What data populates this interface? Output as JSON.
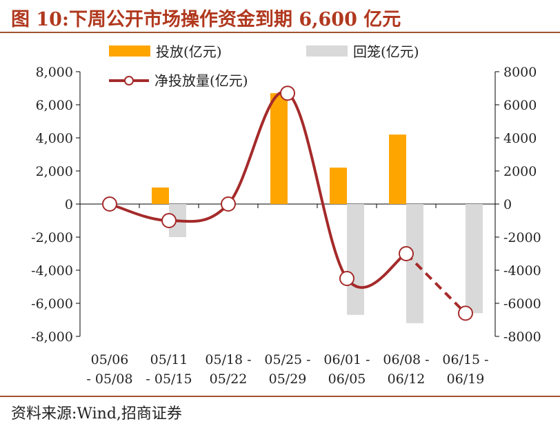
{
  "title": "图 10:下周公开市场操作资金到期 6,600 亿元",
  "source": "资料来源:Wind,招商证券",
  "colors": {
    "title": "#b0381e",
    "rule": "#a0522d",
    "injection": "#ffa500",
    "redemption": "#d9d9d9",
    "net": "#a52a2a"
  },
  "chart_data": {
    "type": "bar",
    "categories": [
      [
        "05/06",
        "- 05/08"
      ],
      [
        "05/11",
        "- 05/15"
      ],
      [
        "05/18 -",
        "05/22"
      ],
      [
        "05/25 -",
        "05/29"
      ],
      [
        "06/01 -",
        "06/05"
      ],
      [
        "06/08 -",
        "06/12"
      ],
      [
        "06/15 -",
        "06/19"
      ]
    ],
    "series": [
      {
        "name": "投放(亿元)",
        "type": "bar",
        "values": [
          0,
          1000,
          0,
          6700,
          2200,
          4200,
          0
        ]
      },
      {
        "name": "回笼(亿元)",
        "type": "bar",
        "values": [
          0,
          -2000,
          0,
          0,
          -6700,
          -7200,
          -6600
        ]
      },
      {
        "name": "净投放量(亿元)",
        "type": "line",
        "values": [
          0,
          -1000,
          0,
          6700,
          -4500,
          -3000,
          -6600
        ],
        "dashed_last_segment": true
      }
    ],
    "ylim": [
      -8000,
      8000
    ],
    "yticks_left": [
      "8,000",
      "6,000",
      "4,000",
      "2,000",
      "0",
      "-2,000",
      "-4,000",
      "-6,000",
      "-8,000"
    ],
    "yticks_right": [
      "8000",
      "6000",
      "4000",
      "2000",
      "0",
      "-2000",
      "-4000",
      "-6000",
      "-8000"
    ],
    "ytick_values": [
      8000,
      6000,
      4000,
      2000,
      0,
      -2000,
      -4000,
      -6000,
      -8000
    ],
    "legend_position": "top",
    "grid": false
  }
}
